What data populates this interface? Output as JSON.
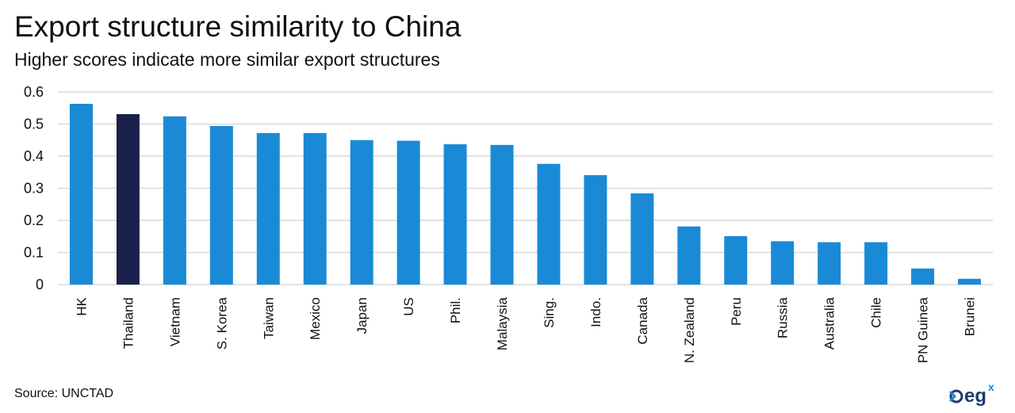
{
  "header": {
    "title": "Export structure similarity to China",
    "subtitle": "Higher scores indicate more similar export structures"
  },
  "footer": {
    "source": "Source:  UNCTAD",
    "logo_text": "eg",
    "logo_sup": "x"
  },
  "colors": {
    "bar": "#1a8ad6",
    "highlight": "#1a1f4c",
    "grid": "#d9d9d9",
    "logo": "#1e3a6e"
  },
  "chart_data": {
    "type": "bar",
    "title": "Export structure similarity to China",
    "subtitle": "Higher scores indicate more similar export structures",
    "xlabel": "",
    "ylabel": "",
    "ylim": [
      0,
      0.6
    ],
    "yticks": [
      "0",
      "0.1",
      "0.2",
      "0.3",
      "0.4",
      "0.5",
      "0.6"
    ],
    "grid": true,
    "legend": "none",
    "highlight": "Thailand",
    "categories": [
      "HK",
      "Thailand",
      "Vietnam",
      "S. Korea",
      "Taiwan",
      "Mexico",
      "Japan",
      "US",
      "Phil.",
      "Malaysia",
      "Sing.",
      "Indo.",
      "Canada",
      "N. Zealand",
      "Peru",
      "Russia",
      "Australia",
      "Chile",
      "PN Guinea",
      "Brunei"
    ],
    "values": [
      0.563,
      0.531,
      0.524,
      0.494,
      0.472,
      0.472,
      0.45,
      0.448,
      0.437,
      0.435,
      0.376,
      0.341,
      0.284,
      0.181,
      0.151,
      0.135,
      0.132,
      0.132,
      0.05,
      0.018
    ]
  }
}
